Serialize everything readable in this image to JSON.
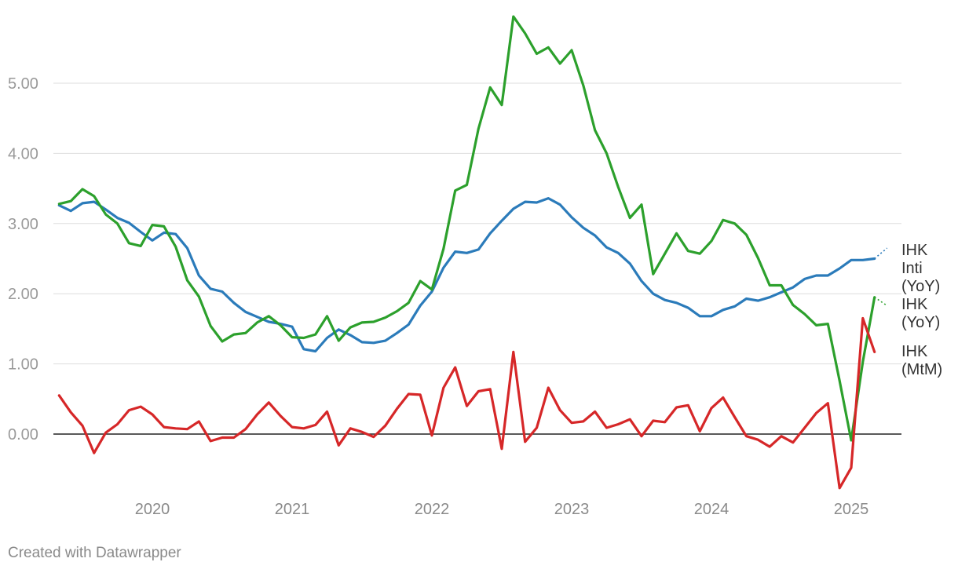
{
  "chart_data": {
    "type": "line",
    "y_ticks": [
      "0.00",
      "1.00",
      "2.00",
      "3.00",
      "4.00",
      "5.00"
    ],
    "y_tick_values": [
      0,
      1,
      2,
      3,
      4,
      5
    ],
    "x_ticks": [
      "2020",
      "2021",
      "2022",
      "2023",
      "2024",
      "2025"
    ],
    "x_tick_values": [
      2020,
      2021,
      2022,
      2023,
      2024,
      2025
    ],
    "ylim": [
      -0.8,
      6.0
    ],
    "xlim": [
      2019.23,
      2025.55
    ],
    "grid": true,
    "zero_line": true,
    "series": [
      {
        "name": "IHK Inti (YoY)",
        "label_lines": [
          "IHK",
          "Inti",
          "(YoY)"
        ],
        "color": "#2b7bba",
        "start": "2019-05",
        "values": [
          3.26,
          3.18,
          3.29,
          3.31,
          3.2,
          3.08,
          3.01,
          2.88,
          2.76,
          2.87,
          2.85,
          2.65,
          2.26,
          2.07,
          2.03,
          1.87,
          1.74,
          1.67,
          1.6,
          1.57,
          1.53,
          1.21,
          1.18,
          1.37,
          1.49,
          1.41,
          1.31,
          1.3,
          1.33,
          1.44,
          1.56,
          1.83,
          2.03,
          2.37,
          2.6,
          2.58,
          2.63,
          2.86,
          3.04,
          3.21,
          3.31,
          3.3,
          3.36,
          3.27,
          3.09,
          2.94,
          2.83,
          2.66,
          2.58,
          2.43,
          2.18,
          2.0,
          1.91,
          1.87,
          1.8,
          1.68,
          1.68,
          1.77,
          1.82,
          1.93,
          1.9,
          1.95,
          2.02,
          2.09,
          2.21,
          2.26,
          2.26,
          2.36,
          2.48,
          2.48,
          2.5
        ],
        "extension": 2.65
      },
      {
        "name": "IHK (YoY)",
        "label_lines": [
          "IHK",
          "(YoY)"
        ],
        "color": "#2ca02c",
        "start": "2019-05",
        "values": [
          3.28,
          3.32,
          3.49,
          3.39,
          3.13,
          3.0,
          2.72,
          2.68,
          2.98,
          2.96,
          2.67,
          2.19,
          1.96,
          1.54,
          1.32,
          1.42,
          1.44,
          1.59,
          1.68,
          1.55,
          1.38,
          1.37,
          1.42,
          1.68,
          1.33,
          1.52,
          1.59,
          1.6,
          1.66,
          1.75,
          1.87,
          2.18,
          2.06,
          2.64,
          3.47,
          3.55,
          4.35,
          4.94,
          4.69,
          5.95,
          5.71,
          5.42,
          5.51,
          5.28,
          5.47,
          4.97,
          4.33,
          4.0,
          3.52,
          3.08,
          3.27,
          2.28,
          2.57,
          2.86,
          2.61,
          2.57,
          2.75,
          3.05,
          3.0,
          2.84,
          2.51,
          2.12,
          2.12,
          1.84,
          1.71,
          1.55,
          1.57,
          0.76,
          -0.09,
          1.03,
          1.95
        ],
        "extension": 1.83
      },
      {
        "name": "IHK (MtM)",
        "label_lines": [
          "IHK",
          "(MtM)"
        ],
        "color": "#d62728",
        "start": "2019-05",
        "values": [
          0.55,
          0.31,
          0.12,
          -0.27,
          0.02,
          0.14,
          0.34,
          0.39,
          0.28,
          0.1,
          0.08,
          0.07,
          0.18,
          -0.1,
          -0.05,
          -0.05,
          0.07,
          0.28,
          0.45,
          0.26,
          0.1,
          0.08,
          0.13,
          0.32,
          -0.16,
          0.08,
          0.03,
          -0.04,
          0.12,
          0.36,
          0.57,
          0.56,
          -0.02,
          0.66,
          0.95,
          0.4,
          0.61,
          0.64,
          -0.21,
          1.17,
          -0.11,
          0.09,
          0.66,
          0.34,
          0.16,
          0.18,
          0.32,
          0.09,
          0.14,
          0.21,
          -0.03,
          0.19,
          0.17,
          0.38,
          0.41,
          0.04,
          0.37,
          0.52,
          0.24,
          -0.03,
          -0.08,
          -0.18,
          -0.03,
          -0.12,
          0.09,
          0.3,
          0.44,
          -0.77,
          -0.48,
          1.65,
          1.17
        ]
      }
    ]
  },
  "footer": {
    "credit": "Created with Datawrapper"
  }
}
